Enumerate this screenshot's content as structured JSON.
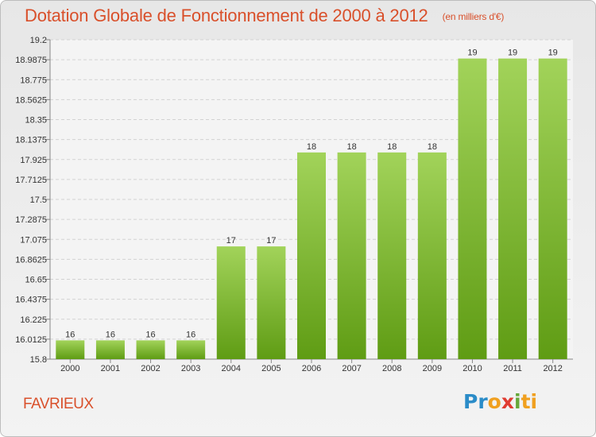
{
  "header": {
    "title": "Dotation Globale de Fonctionnement de 2000 à 2012",
    "subtitle": "(en milliers d'€)"
  },
  "city": "FAVRIEUX",
  "logo": {
    "letters": [
      "Pr",
      "o",
      "x",
      "i",
      "ti"
    ]
  },
  "colors": {
    "bar_top": "#a2d35a",
    "bar_bottom": "#5f9c14",
    "title": "#d9502b"
  },
  "chart_data": {
    "type": "bar",
    "title": "Dotation Globale de Fonctionnement de 2000 à 2012",
    "subtitle": "(en milliers d'€)",
    "categories": [
      "2000",
      "2001",
      "2002",
      "2003",
      "2004",
      "2005",
      "2006",
      "2007",
      "2008",
      "2009",
      "2010",
      "2011",
      "2012"
    ],
    "values": [
      16,
      16,
      16,
      16,
      17,
      17,
      18,
      18,
      18,
      18,
      19,
      19,
      19
    ],
    "ylim": [
      15.8,
      19.2
    ],
    "yticks": [
      "15.8",
      "16.0125",
      "16.225",
      "16.4375",
      "16.65",
      "16.8625",
      "17.075",
      "17.2875",
      "17.5",
      "17.7125",
      "17.925",
      "18.1375",
      "18.35",
      "18.5625",
      "18.775",
      "18.9875",
      "19.2"
    ],
    "grid": true
  }
}
